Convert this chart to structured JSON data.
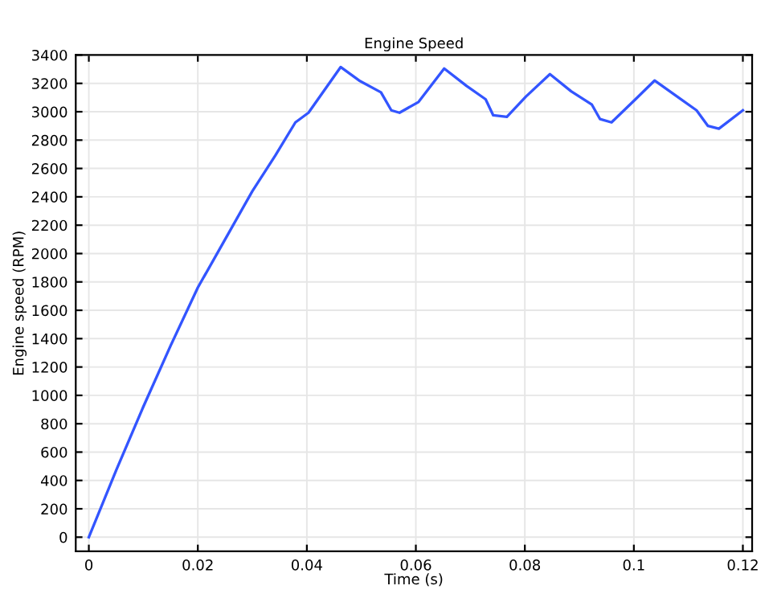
{
  "chart_data": {
    "type": "line",
    "title": "Engine Speed",
    "xlabel": "Time (s)",
    "ylabel": "Engine speed (RPM)",
    "x": [
      0,
      0.005,
      0.01,
      0.015,
      0.02,
      0.025,
      0.03,
      0.0342,
      0.0379,
      0.0403,
      0.0462,
      0.0496,
      0.0536,
      0.0555,
      0.057,
      0.0605,
      0.0652,
      0.0693,
      0.0728,
      0.0742,
      0.0767,
      0.0802,
      0.0846,
      0.0885,
      0.0923,
      0.0938,
      0.0959,
      0.1003,
      0.1038,
      0.1082,
      0.1115,
      0.1136,
      0.1156,
      0.12
    ],
    "series": [
      {
        "color": "#3355ff",
        "values": [
          0,
          470,
          920,
          1350,
          1760,
          2100,
          2440,
          2690,
          2925,
          2993,
          3315,
          3220,
          3137,
          3010,
          2993,
          3069,
          3305,
          3182,
          3088,
          2975,
          2964,
          3107,
          3265,
          3144,
          3050,
          2948,
          2925,
          3088,
          3220,
          3100,
          3010,
          2900,
          2880,
          3010
        ]
      }
    ],
    "xlim": [
      -0.0024,
      0.1217
    ],
    "ylim": [
      -100,
      3400
    ],
    "xticks": [
      0,
      0.02,
      0.04,
      0.06,
      0.08,
      0.1,
      0.12
    ],
    "yticks": [
      0,
      200,
      400,
      600,
      800,
      1000,
      1200,
      1400,
      1600,
      1800,
      2000,
      2200,
      2400,
      2600,
      2800,
      3000,
      3200,
      3400
    ],
    "grid": true,
    "line_style": "solid",
    "marker": "none",
    "legend": false
  }
}
